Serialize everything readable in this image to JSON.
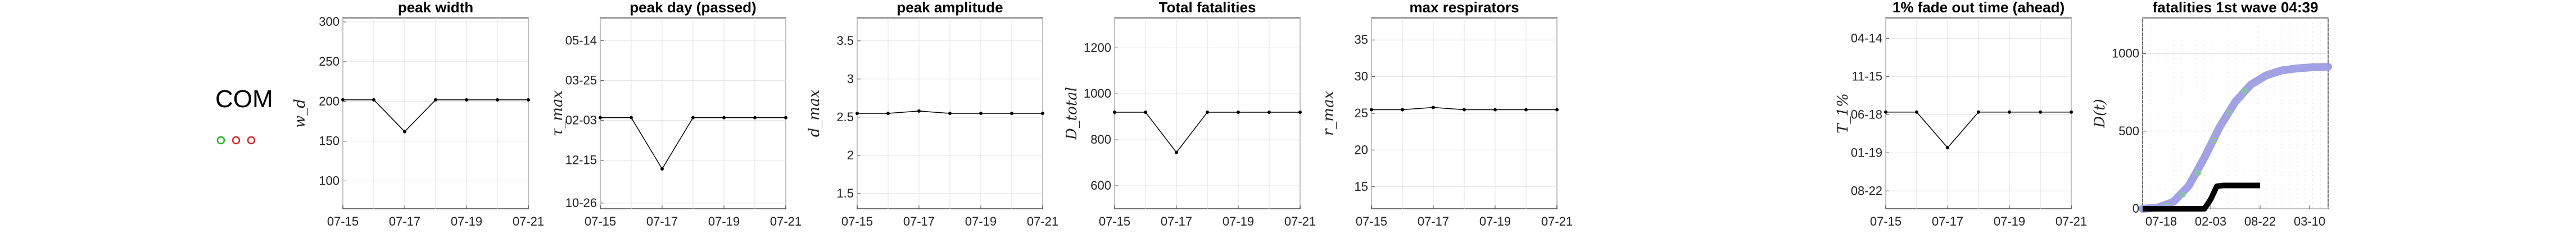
{
  "label": "COM",
  "marker_colors": [
    "#1fb51f",
    "#d62728",
    "#d62728"
  ],
  "line_color": "#000000",
  "band_color": "#9c9ce3",
  "scatter_color": "#7fd67f",
  "chart_data": [
    {
      "type": "line",
      "title": "peak width",
      "ylabel": "w_d",
      "x": [
        "07-15",
        "07-16",
        "07-17",
        "07-18",
        "07-19",
        "07-20",
        "07-21"
      ],
      "xticks": [
        "07-15",
        "07-17",
        "07-19",
        "07-21"
      ],
      "values": [
        202,
        202,
        162,
        202,
        202,
        202,
        202
      ],
      "ylim": [
        65,
        305
      ],
      "yticks": [
        "100",
        "150",
        "200",
        "250",
        "300"
      ],
      "ytick_values": [
        100,
        150,
        200,
        250,
        300
      ],
      "grid": true
    },
    {
      "type": "line",
      "title": "peak day (passed)",
      "ylabel": "τ_max",
      "x": [
        "07-15",
        "07-16",
        "07-17",
        "07-18",
        "07-19",
        "07-20",
        "07-21"
      ],
      "xticks": [
        "07-15",
        "07-17",
        "07-19",
        "07-21"
      ],
      "values": [
        2.5,
        2.5,
        0.7,
        2.5,
        2.5,
        2.5,
        2.5
      ],
      "ylim": [
        -0.7,
        6.0
      ],
      "yticks": [
        "10-26",
        "12-15",
        "02-03",
        "03-25",
        "05-14"
      ],
      "ytick_values": [
        -0.5,
        1,
        2.4,
        3.8,
        5.2
      ],
      "grid": true
    },
    {
      "type": "line",
      "title": "peak amplitude",
      "ylabel": "d_max",
      "x": [
        "07-15",
        "07-16",
        "07-17",
        "07-18",
        "07-19",
        "07-20",
        "07-21"
      ],
      "xticks": [
        "07-15",
        "07-17",
        "07-19",
        "07-21"
      ],
      "values": [
        2.55,
        2.55,
        2.58,
        2.55,
        2.55,
        2.55,
        2.55
      ],
      "ylim": [
        1.3,
        3.8
      ],
      "yticks": [
        "1.5",
        "2",
        "2.5",
        "3",
        "3.5"
      ],
      "ytick_values": [
        1.5,
        2,
        2.5,
        3,
        3.5
      ],
      "grid": true
    },
    {
      "type": "line",
      "title": "Total fatalities",
      "ylabel": "D_total",
      "x": [
        "07-15",
        "07-16",
        "07-17",
        "07-18",
        "07-19",
        "07-20",
        "07-21"
      ],
      "xticks": [
        "07-15",
        "07-17",
        "07-19",
        "07-21"
      ],
      "values": [
        920,
        920,
        745,
        920,
        920,
        920,
        920
      ],
      "ylim": [
        500,
        1330
      ],
      "yticks": [
        "600",
        "800",
        "1000",
        "1200"
      ],
      "ytick_values": [
        600,
        800,
        1000,
        1200
      ],
      "grid": true
    },
    {
      "type": "line",
      "title": "max respirators",
      "ylabel": "r_max",
      "x": [
        "07-15",
        "07-16",
        "07-17",
        "07-18",
        "07-19",
        "07-20",
        "07-21"
      ],
      "xticks": [
        "07-15",
        "07-17",
        "07-19",
        "07-21"
      ],
      "values": [
        25.5,
        25.5,
        25.8,
        25.5,
        25.5,
        25.5,
        25.5
      ],
      "ylim": [
        12,
        38
      ],
      "yticks": [
        "15",
        "20",
        "25",
        "30",
        "35"
      ],
      "ytick_values": [
        15,
        20,
        25,
        30,
        35
      ],
      "grid": true
    },
    {
      "type": "line",
      "title": "1% fade out time (ahead)",
      "ylabel": "T_1%",
      "x": [
        "07-15",
        "07-16",
        "07-17",
        "07-18",
        "07-19",
        "07-20",
        "07-21"
      ],
      "xticks": [
        "07-15",
        "07-17",
        "07-19",
        "07-21"
      ],
      "values": [
        3.1,
        3.1,
        1.7,
        3.1,
        3.1,
        3.1,
        3.1
      ],
      "ylim": [
        -0.7,
        6.8
      ],
      "yticks": [
        "08-22",
        "01-19",
        "06-18",
        "11-15",
        "04-14"
      ],
      "ytick_values": [
        0,
        1.5,
        3,
        4.5,
        6
      ],
      "grid": true
    },
    {
      "type": "area",
      "title": "fatalities 1st wave 04:39",
      "ylabel": "D(t)",
      "xticks": [
        "07-18",
        "02-03",
        "08-22",
        "03-10"
      ],
      "xtick_values": [
        0.6,
        2.2,
        3.8,
        5.4
      ],
      "xlim": [
        0,
        6
      ],
      "ylim": [
        0,
        1230
      ],
      "yticks": [
        "0",
        "500",
        "1000"
      ],
      "ytick_values": [
        0,
        500,
        1000
      ],
      "series": [
        {
          "role": "model_band",
          "x": [
            0,
            0.5,
            1,
            1.5,
            2,
            2.5,
            3,
            3.5,
            4,
            4.5,
            5,
            5.5,
            6
          ],
          "values": [
            0,
            8,
            45,
            150,
            330,
            530,
            690,
            800,
            860,
            892,
            905,
            912,
            915
          ]
        },
        {
          "role": "scatter",
          "x": [
            0.3,
            0.8,
            1.3,
            1.8,
            2.3,
            2.8,
            3.3
          ],
          "values": [
            2,
            20,
            90,
            230,
            440,
            620,
            760
          ]
        },
        {
          "role": "observed",
          "x": [
            0,
            0.5,
            1,
            1.5,
            2,
            2.2,
            2.4,
            2.6,
            2.8,
            3,
            3.2,
            3.4,
            3.6,
            3.8
          ],
          "values": [
            0,
            0,
            0,
            0,
            0,
            60,
            145,
            150,
            150,
            150,
            150,
            150,
            150,
            150
          ]
        }
      ],
      "grid": true
    }
  ]
}
